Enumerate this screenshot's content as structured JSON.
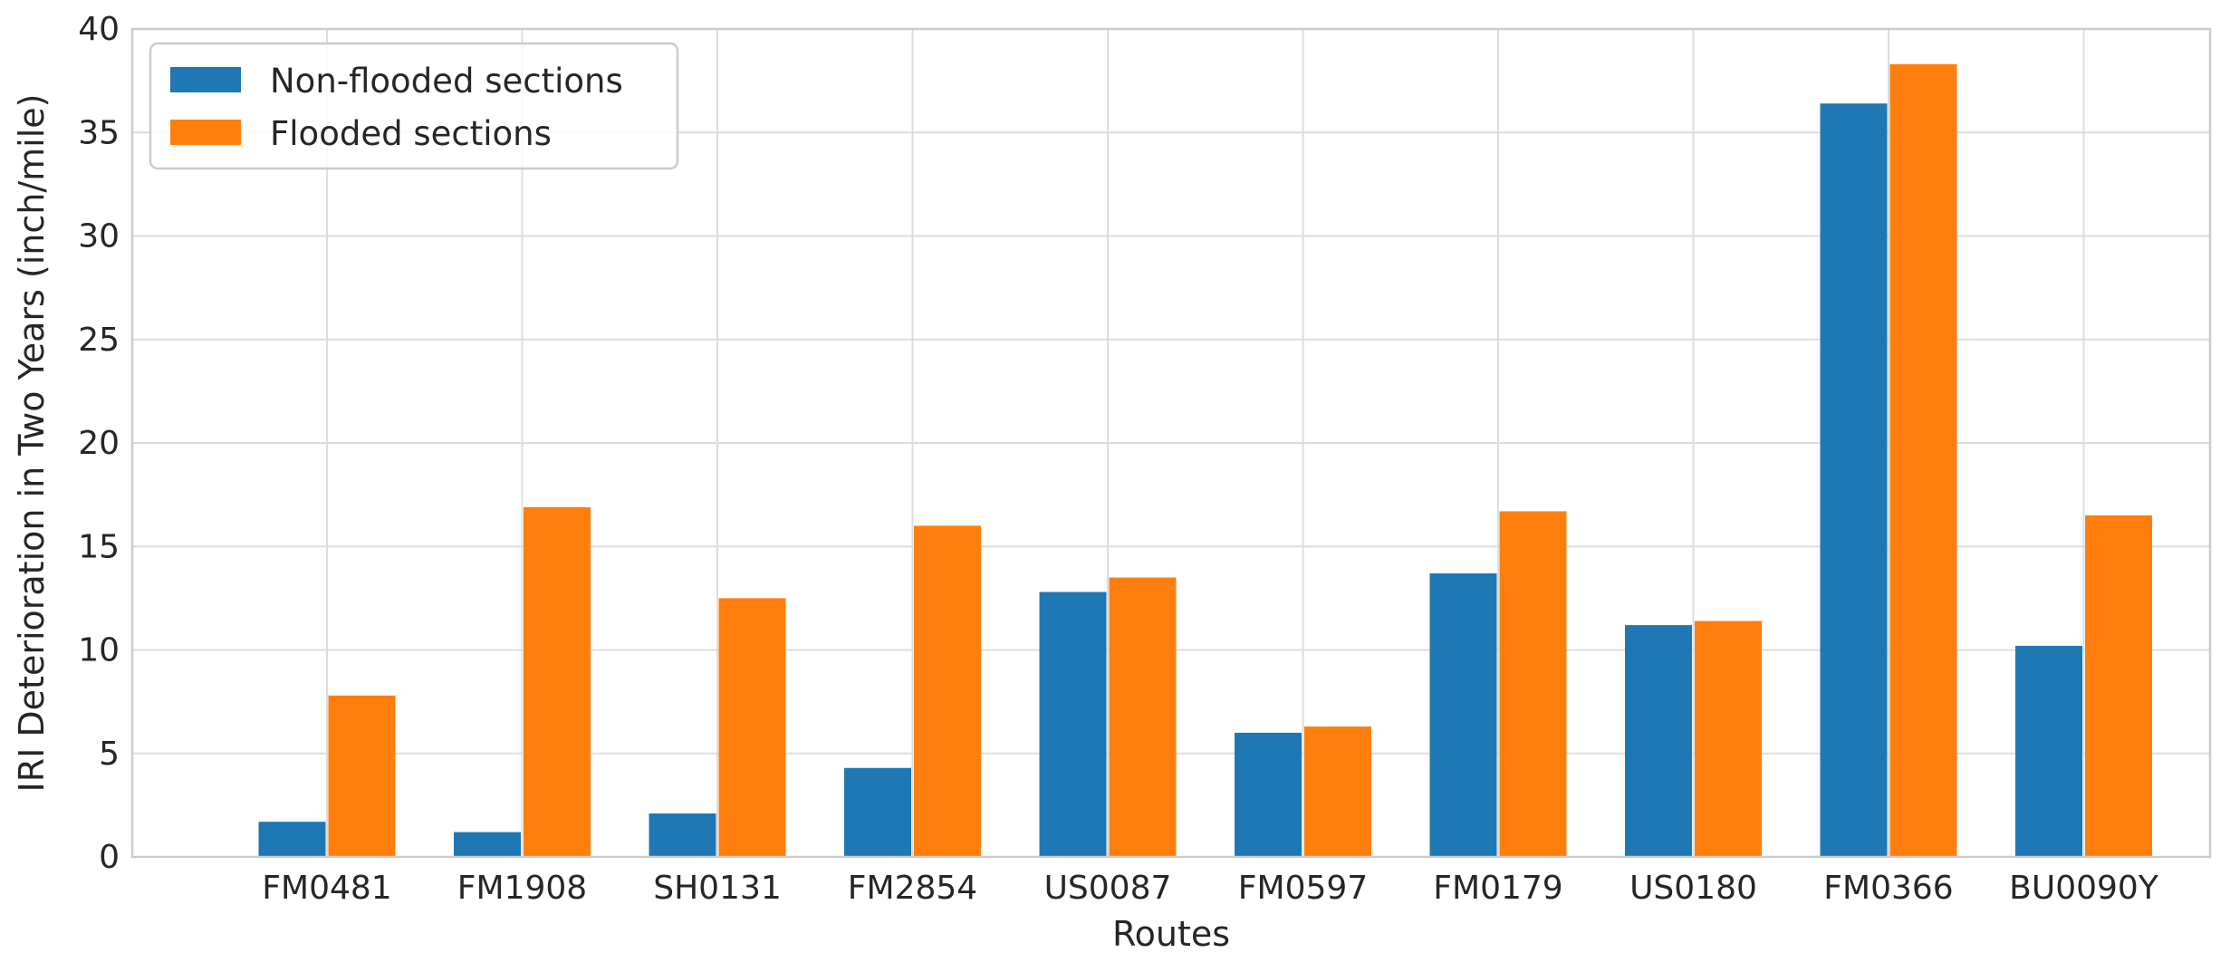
{
  "chart_data": {
    "type": "bar",
    "title": "",
    "xlabel": "Routes",
    "ylabel": "IRI Deterioration in Two Years (inch/mile)",
    "ylim": [
      0,
      40
    ],
    "yticks": [
      0,
      5,
      10,
      15,
      20,
      25,
      30,
      35,
      40
    ],
    "grid": true,
    "legend_position": "top-left",
    "categories": [
      "FM0481",
      "FM1908",
      "SH0131",
      "FM2854",
      "US0087",
      "FM0597",
      "FM0179",
      "US0180",
      "FM0366",
      "BU0090Y"
    ],
    "series": [
      {
        "name": "Non-flooded sections",
        "color": "#1f77b4",
        "values": [
          1.7,
          1.2,
          2.1,
          4.3,
          12.8,
          6.0,
          13.7,
          11.2,
          36.4,
          10.2
        ]
      },
      {
        "name": "Flooded sections",
        "color": "#ff7f0e",
        "values": [
          7.8,
          16.9,
          12.5,
          16.0,
          13.5,
          6.3,
          16.7,
          11.4,
          38.3,
          16.5
        ]
      }
    ]
  }
}
